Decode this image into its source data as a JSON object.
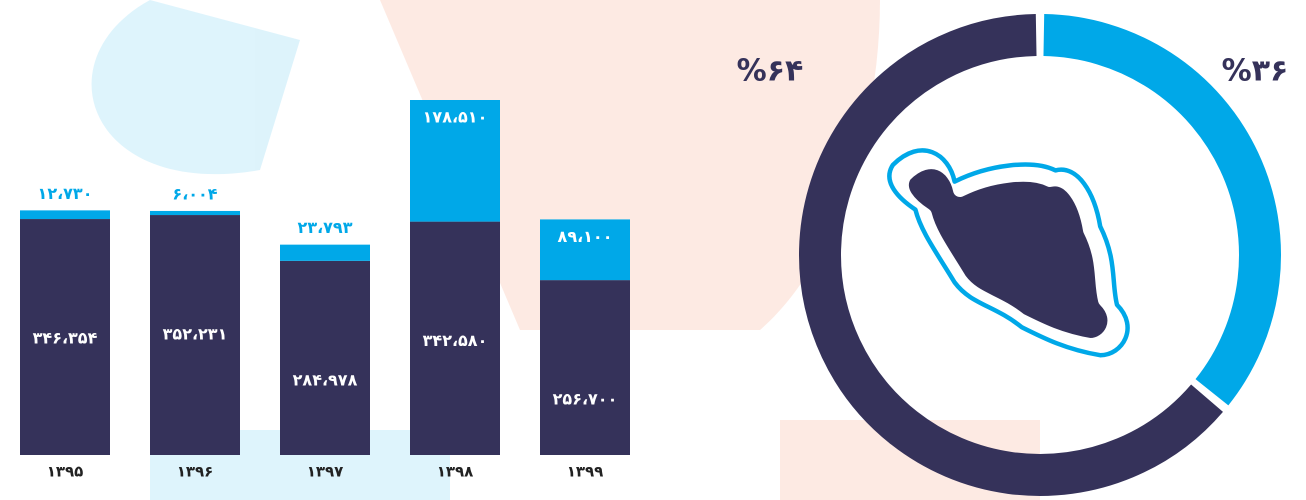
{
  "chart_data": [
    {
      "type": "bar",
      "stacked": true,
      "categories": [
        "۱۳۹۵",
        "۱۳۹۶",
        "۱۳۹۷",
        "۱۳۹۸",
        "۱۳۹۹"
      ],
      "series": [
        {
          "color": "#35325a",
          "values": [
            346354,
            352231,
            284978,
            342580,
            256700
          ],
          "value_labels": [
            "۳۴۶،۳۵۴",
            "۳۵۲،۲۳۱",
            "۲۸۴،۹۷۸",
            "۳۴۲،۵۸۰",
            "۲۵۶،۷۰۰"
          ]
        },
        {
          "color": "#00a8e8",
          "values": [
            12730,
            6004,
            23793,
            178510,
            89100
          ],
          "value_labels": [
            "۱۲،۷۳۰",
            "۶،۰۰۴",
            "۲۳،۷۹۳",
            "۱۷۸،۵۱۰",
            "۸۹،۱۰۰"
          ]
        }
      ]
    },
    {
      "type": "pie",
      "donut": true,
      "values": [
        36,
        64
      ],
      "value_labels": [
        "%۳۶",
        "%۶۴"
      ],
      "colors": [
        "#00a8e8",
        "#35325a"
      ]
    }
  ]
}
